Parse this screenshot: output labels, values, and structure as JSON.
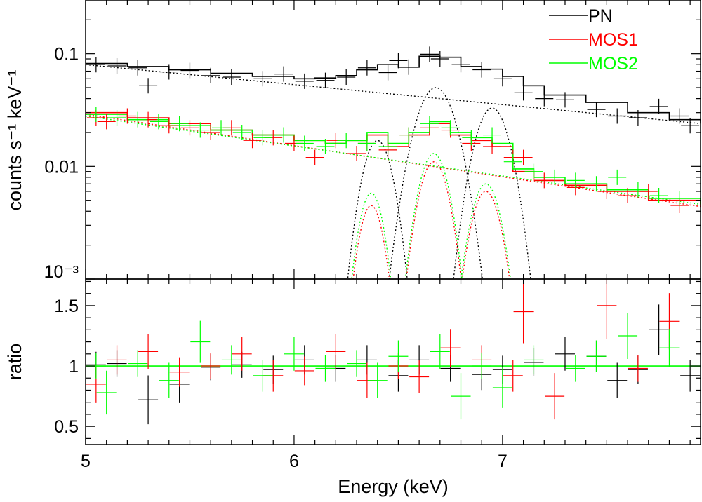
{
  "chart_data": [
    {
      "panel": "spectrum",
      "type": "line",
      "xlabel": "",
      "ylabel": "counts s⁻¹ keV⁻¹",
      "xlim": [
        5.0,
        7.95
      ],
      "ylim": [
        0.001,
        0.3
      ],
      "yscale": "log",
      "x_ticks": [
        5,
        6,
        7
      ],
      "y_tick_labels": [
        {
          "value": 0.1,
          "label": "0.1"
        },
        {
          "value": 0.01,
          "label": "0.01"
        },
        {
          "value": 0.001,
          "label": "10⁻³"
        }
      ],
      "legend": {
        "position": "top-right",
        "entries": [
          {
            "name": "PN",
            "color": "#000000"
          },
          {
            "name": "MOS1",
            "color": "#ff0000"
          },
          {
            "name": "MOS2",
            "color": "#00ff00"
          }
        ]
      },
      "series": [
        {
          "name": "PN",
          "color": "#000000",
          "model_step": [
            [
              5.0,
              0.082
            ],
            [
              5.2,
              0.077
            ],
            [
              5.4,
              0.072
            ],
            [
              5.6,
              0.067
            ],
            [
              5.8,
              0.063
            ],
            [
              6.0,
              0.06
            ],
            [
              6.1,
              0.061
            ],
            [
              6.2,
              0.064
            ],
            [
              6.3,
              0.072
            ],
            [
              6.4,
              0.08
            ],
            [
              6.5,
              0.076
            ],
            [
              6.6,
              0.095
            ],
            [
              6.7,
              0.093
            ],
            [
              6.8,
              0.077
            ],
            [
              6.9,
              0.073
            ],
            [
              7.0,
              0.063
            ],
            [
              7.1,
              0.052
            ],
            [
              7.2,
              0.043
            ],
            [
              7.4,
              0.037
            ],
            [
              7.6,
              0.03
            ],
            [
              7.8,
              0.026
            ],
            [
              7.95,
              0.024
            ]
          ],
          "points": [
            [
              5.05,
              0.08
            ],
            [
              5.15,
              0.078
            ],
            [
              5.25,
              0.075
            ],
            [
              5.3,
              0.052
            ],
            [
              5.4,
              0.069
            ],
            [
              5.5,
              0.071
            ],
            [
              5.6,
              0.064
            ],
            [
              5.7,
              0.062
            ],
            [
              5.85,
              0.06
            ],
            [
              5.95,
              0.066
            ],
            [
              6.05,
              0.057
            ],
            [
              6.15,
              0.058
            ],
            [
              6.25,
              0.062
            ],
            [
              6.35,
              0.075
            ],
            [
              6.45,
              0.068
            ],
            [
              6.5,
              0.087
            ],
            [
              6.55,
              0.076
            ],
            [
              6.65,
              0.099
            ],
            [
              6.7,
              0.09
            ],
            [
              6.8,
              0.08
            ],
            [
              6.9,
              0.072
            ],
            [
              7.0,
              0.06
            ],
            [
              7.1,
              0.045
            ],
            [
              7.2,
              0.04
            ],
            [
              7.3,
              0.039
            ],
            [
              7.45,
              0.032
            ],
            [
              7.55,
              0.028
            ],
            [
              7.65,
              0.027
            ],
            [
              7.75,
              0.034
            ],
            [
              7.85,
              0.028
            ],
            [
              7.9,
              0.023
            ]
          ]
        },
        {
          "name": "MOS1",
          "color": "#ff0000",
          "model_step": [
            [
              5.0,
              0.03
            ],
            [
              5.2,
              0.027
            ],
            [
              5.4,
              0.024
            ],
            [
              5.6,
              0.021
            ],
            [
              5.8,
              0.019
            ],
            [
              6.0,
              0.017
            ],
            [
              6.15,
              0.016
            ],
            [
              6.25,
              0.017
            ],
            [
              6.35,
              0.019
            ],
            [
              6.45,
              0.015
            ],
            [
              6.55,
              0.019
            ],
            [
              6.65,
              0.024
            ],
            [
              6.75,
              0.019
            ],
            [
              6.85,
              0.017
            ],
            [
              6.95,
              0.015
            ],
            [
              7.05,
              0.009
            ],
            [
              7.15,
              0.0075
            ],
            [
              7.3,
              0.0068
            ],
            [
              7.5,
              0.006
            ],
            [
              7.7,
              0.005
            ],
            [
              7.95,
              0.0044
            ]
          ],
          "points": [
            [
              5.05,
              0.027
            ],
            [
              5.1,
              0.025
            ],
            [
              5.2,
              0.028
            ],
            [
              5.3,
              0.026
            ],
            [
              5.4,
              0.023
            ],
            [
              5.5,
              0.022
            ],
            [
              5.6,
              0.02
            ],
            [
              5.7,
              0.022
            ],
            [
              5.8,
              0.017
            ],
            [
              5.9,
              0.018
            ],
            [
              6.0,
              0.016
            ],
            [
              6.1,
              0.012
            ],
            [
              6.2,
              0.017
            ],
            [
              6.3,
              0.013
            ],
            [
              6.35,
              0.016
            ],
            [
              6.45,
              0.014
            ],
            [
              6.55,
              0.019
            ],
            [
              6.65,
              0.022
            ],
            [
              6.75,
              0.021
            ],
            [
              6.85,
              0.016
            ],
            [
              6.95,
              0.015
            ],
            [
              7.05,
              0.012
            ],
            [
              7.1,
              0.012
            ],
            [
              7.2,
              0.0075
            ],
            [
              7.35,
              0.0065
            ],
            [
              7.5,
              0.006
            ],
            [
              7.6,
              0.0055
            ],
            [
              7.7,
              0.006
            ],
            [
              7.85,
              0.0045
            ]
          ]
        },
        {
          "name": "MOS2",
          "color": "#00ff00",
          "model_step": [
            [
              5.0,
              0.029
            ],
            [
              5.2,
              0.026
            ],
            [
              5.4,
              0.023
            ],
            [
              5.6,
              0.021
            ],
            [
              5.8,
              0.019
            ],
            [
              6.0,
              0.017
            ],
            [
              6.15,
              0.016
            ],
            [
              6.25,
              0.017
            ],
            [
              6.35,
              0.02
            ],
            [
              6.45,
              0.016
            ],
            [
              6.55,
              0.02
            ],
            [
              6.65,
              0.025
            ],
            [
              6.75,
              0.02
            ],
            [
              6.85,
              0.018
            ],
            [
              6.95,
              0.016
            ],
            [
              7.05,
              0.0095
            ],
            [
              7.15,
              0.008
            ],
            [
              7.3,
              0.007
            ],
            [
              7.5,
              0.0062
            ],
            [
              7.7,
              0.0052
            ],
            [
              7.95,
              0.0046
            ]
          ],
          "points": [
            [
              5.05,
              0.029
            ],
            [
              5.15,
              0.027
            ],
            [
              5.25,
              0.026
            ],
            [
              5.35,
              0.025
            ],
            [
              5.45,
              0.024
            ],
            [
              5.55,
              0.021
            ],
            [
              5.65,
              0.022
            ],
            [
              5.75,
              0.02
            ],
            [
              5.85,
              0.018
            ],
            [
              5.95,
              0.019
            ],
            [
              6.05,
              0.016
            ],
            [
              6.15,
              0.015
            ],
            [
              6.25,
              0.017
            ],
            [
              6.35,
              0.016
            ],
            [
              6.45,
              0.015
            ],
            [
              6.55,
              0.019
            ],
            [
              6.65,
              0.024
            ],
            [
              6.75,
              0.022
            ],
            [
              6.85,
              0.018
            ],
            [
              6.95,
              0.019
            ],
            [
              7.05,
              0.011
            ],
            [
              7.15,
              0.009
            ],
            [
              7.25,
              0.008
            ],
            [
              7.35,
              0.0075
            ],
            [
              7.45,
              0.007
            ],
            [
              7.55,
              0.008
            ],
            [
              7.65,
              0.0062
            ],
            [
              7.75,
              0.0055
            ],
            [
              7.85,
              0.0052
            ]
          ]
        }
      ],
      "model_components": [
        {
          "series": "PN",
          "color": "#000000",
          "continuum": [
            [
              5.0,
              0.08
            ],
            [
              7.95,
              0.024
            ]
          ],
          "lines": [
            {
              "center": 6.4,
              "peak": 0.017,
              "sigma": 0.06
            },
            {
              "center": 6.68,
              "peak": 0.05,
              "sigma": 0.08
            },
            {
              "center": 6.95,
              "peak": 0.033,
              "sigma": 0.07
            }
          ]
        },
        {
          "series": "MOS1",
          "color": "#ff0000",
          "continuum": [
            [
              5.0,
              0.029
            ],
            [
              7.95,
              0.0044
            ]
          ],
          "lines": [
            {
              "center": 6.37,
              "peak": 0.0045,
              "sigma": 0.05
            },
            {
              "center": 6.67,
              "peak": 0.011,
              "sigma": 0.06
            },
            {
              "center": 6.92,
              "peak": 0.006,
              "sigma": 0.06
            }
          ]
        },
        {
          "series": "MOS2",
          "color": "#00ff00",
          "continuum": [
            [
              5.0,
              0.028
            ],
            [
              7.95,
              0.0046
            ]
          ],
          "lines": [
            {
              "center": 6.37,
              "peak": 0.0058,
              "sigma": 0.05
            },
            {
              "center": 6.67,
              "peak": 0.013,
              "sigma": 0.06
            },
            {
              "center": 6.92,
              "peak": 0.007,
              "sigma": 0.06
            }
          ]
        }
      ]
    },
    {
      "panel": "ratio",
      "type": "scatter",
      "xlabel": "Energy (keV)",
      "ylabel": "ratio",
      "xlim": [
        5.0,
        7.95
      ],
      "ylim": [
        0.35,
        1.72
      ],
      "x_ticks": [
        5,
        6,
        7
      ],
      "y_tick_labels": [
        {
          "value": 1.5,
          "label": "1.5"
        },
        {
          "value": 1.0,
          "label": "1"
        },
        {
          "value": 0.5,
          "label": "0.5"
        }
      ],
      "reference_line": {
        "value": 1.0,
        "color": "#00ff00"
      },
      "series": [
        {
          "name": "PN",
          "color": "#000000",
          "points": [
            [
              5.05,
              1.01
            ],
            [
              5.15,
              1.02
            ],
            [
              5.3,
              0.72
            ],
            [
              5.45,
              0.85
            ],
            [
              5.6,
              0.99
            ],
            [
              5.75,
              1.01
            ],
            [
              5.9,
              0.97
            ],
            [
              6.05,
              1.05
            ],
            [
              6.2,
              0.98
            ],
            [
              6.35,
              1.05
            ],
            [
              6.5,
              0.92
            ],
            [
              6.6,
              1.05
            ],
            [
              6.75,
              0.98
            ],
            [
              6.9,
              0.93
            ],
            [
              7.0,
              0.97
            ],
            [
              7.15,
              1.03
            ],
            [
              7.3,
              1.1
            ],
            [
              7.45,
              1.08
            ],
            [
              7.55,
              0.88
            ],
            [
              7.65,
              0.97
            ],
            [
              7.75,
              1.3
            ],
            [
              7.9,
              0.92
            ]
          ]
        },
        {
          "name": "MOS1",
          "color": "#ff0000",
          "points": [
            [
              5.05,
              0.85
            ],
            [
              5.15,
              1.05
            ],
            [
              5.3,
              1.12
            ],
            [
              5.45,
              0.95
            ],
            [
              5.6,
              1.0
            ],
            [
              5.75,
              1.1
            ],
            [
              5.9,
              0.92
            ],
            [
              6.05,
              0.96
            ],
            [
              6.2,
              1.12
            ],
            [
              6.35,
              0.88
            ],
            [
              6.5,
              1.0
            ],
            [
              6.6,
              0.91
            ],
            [
              6.75,
              1.15
            ],
            [
              6.9,
              1.05
            ],
            [
              7.05,
              0.92
            ],
            [
              7.1,
              1.45
            ],
            [
              7.25,
              0.75
            ],
            [
              7.5,
              1.5
            ],
            [
              7.65,
              0.98
            ],
            [
              7.8,
              1.37
            ]
          ]
        },
        {
          "name": "MOS2",
          "color": "#00ff00",
          "points": [
            [
              5.05,
              1.0
            ],
            [
              5.1,
              0.78
            ],
            [
              5.25,
              1.02
            ],
            [
              5.4,
              0.88
            ],
            [
              5.55,
              1.2
            ],
            [
              5.7,
              1.05
            ],
            [
              5.85,
              0.92
            ],
            [
              6.0,
              1.1
            ],
            [
              6.15,
              0.98
            ],
            [
              6.3,
              1.02
            ],
            [
              6.4,
              0.88
            ],
            [
              6.5,
              1.08
            ],
            [
              6.7,
              1.12
            ],
            [
              6.8,
              0.75
            ],
            [
              6.9,
              1.0
            ],
            [
              7.0,
              0.82
            ],
            [
              7.15,
              1.05
            ],
            [
              7.35,
              0.98
            ],
            [
              7.45,
              1.08
            ],
            [
              7.6,
              1.25
            ],
            [
              7.8,
              1.15
            ]
          ]
        }
      ]
    }
  ]
}
